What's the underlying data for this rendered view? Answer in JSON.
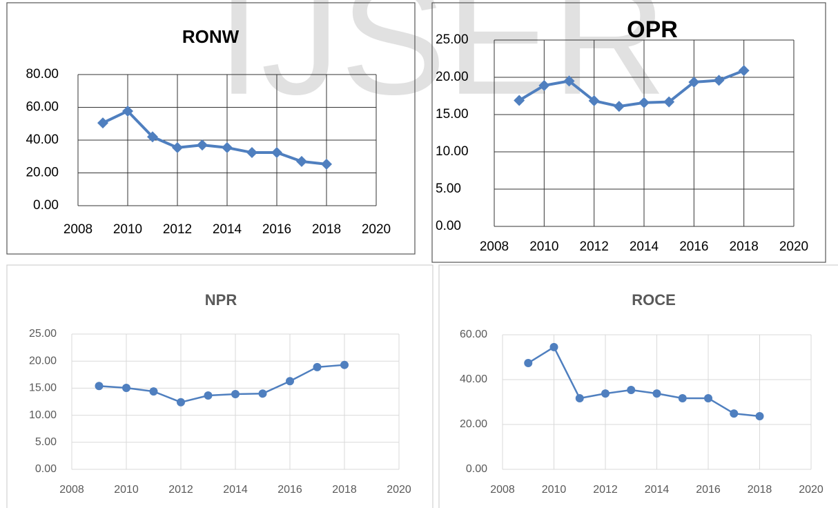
{
  "watermark": "IJSER",
  "chart_data": [
    {
      "type": "line",
      "title": "RONW",
      "marker": "diamond",
      "grid": true,
      "x": [
        2009,
        2010,
        2011,
        2012,
        2013,
        2014,
        2015,
        2016,
        2017,
        2018
      ],
      "series": [
        {
          "color": "#4f7fbf",
          "values": [
            50.5,
            57.7,
            42.0,
            35.4,
            37.0,
            35.4,
            32.4,
            32.4,
            27.0,
            25.3
          ]
        }
      ],
      "xlim": [
        2008,
        2020
      ],
      "xticks": [
        2008,
        2010,
        2012,
        2014,
        2016,
        2018,
        2020
      ],
      "ylim": [
        0,
        80
      ],
      "yticks": [
        {
          "value": 0,
          "label": "0.00"
        },
        {
          "value": 20,
          "label": "20.00"
        },
        {
          "value": 40,
          "label": "40.00"
        },
        {
          "value": 60,
          "label": "60.00"
        },
        {
          "value": 80,
          "label": "80.00"
        }
      ]
    },
    {
      "type": "line",
      "title": "OPR",
      "marker": "diamond",
      "grid": true,
      "x": [
        2009,
        2010,
        2011,
        2012,
        2013,
        2014,
        2015,
        2016,
        2017,
        2018
      ],
      "series": [
        {
          "color": "#4f7fbf",
          "values": [
            16.9,
            18.9,
            19.5,
            16.85,
            16.1,
            16.6,
            16.7,
            19.35,
            19.6,
            20.9
          ]
        }
      ],
      "xlim": [
        2008,
        2020
      ],
      "xticks": [
        2008,
        2010,
        2012,
        2014,
        2016,
        2018,
        2020
      ],
      "ylim": [
        0,
        25
      ],
      "yticks": [
        {
          "value": 0,
          "label": "0.00"
        },
        {
          "value": 5,
          "label": "5.00"
        },
        {
          "value": 10,
          "label": "10.00"
        },
        {
          "value": 15,
          "label": "15.00"
        },
        {
          "value": 20,
          "label": "20.00"
        },
        {
          "value": 25,
          "label": "25.00"
        }
      ]
    },
    {
      "type": "line",
      "title": "NPR",
      "marker": "circle",
      "grid": true,
      "x": [
        2009,
        2010,
        2011,
        2012,
        2013,
        2014,
        2015,
        2016,
        2017,
        2018
      ],
      "series": [
        {
          "color": "#4f7fbf",
          "values": [
            15.4,
            15.05,
            14.4,
            12.4,
            13.65,
            13.9,
            14.0,
            16.3,
            18.9,
            19.3
          ]
        }
      ],
      "xlim": [
        2008,
        2020
      ],
      "xticks": [
        2008,
        2010,
        2012,
        2014,
        2016,
        2018,
        2020
      ],
      "ylim": [
        0,
        25
      ],
      "yticks": [
        {
          "value": 0,
          "label": "0.00"
        },
        {
          "value": 5,
          "label": "5.00"
        },
        {
          "value": 10,
          "label": "10.00"
        },
        {
          "value": 15,
          "label": "15.00"
        },
        {
          "value": 20,
          "label": "20.00"
        },
        {
          "value": 25,
          "label": "25.00"
        }
      ]
    },
    {
      "type": "line",
      "title": "ROCE",
      "marker": "circle",
      "grid": true,
      "x": [
        2009,
        2010,
        2011,
        2012,
        2013,
        2014,
        2015,
        2016,
        2017,
        2018
      ],
      "series": [
        {
          "color": "#4f7fbf",
          "values": [
            47.4,
            54.5,
            31.7,
            33.8,
            35.4,
            33.8,
            31.7,
            31.7,
            24.9,
            23.7
          ]
        }
      ],
      "xlim": [
        2008,
        2020
      ],
      "xticks": [
        2008,
        2010,
        2012,
        2014,
        2016,
        2018,
        2020
      ],
      "ylim": [
        0,
        60
      ],
      "yticks": [
        {
          "value": 0,
          "label": "0.00"
        },
        {
          "value": 20,
          "label": "20.00"
        },
        {
          "value": 40,
          "label": "40.00"
        },
        {
          "value": 60,
          "label": "60.00"
        }
      ]
    }
  ]
}
